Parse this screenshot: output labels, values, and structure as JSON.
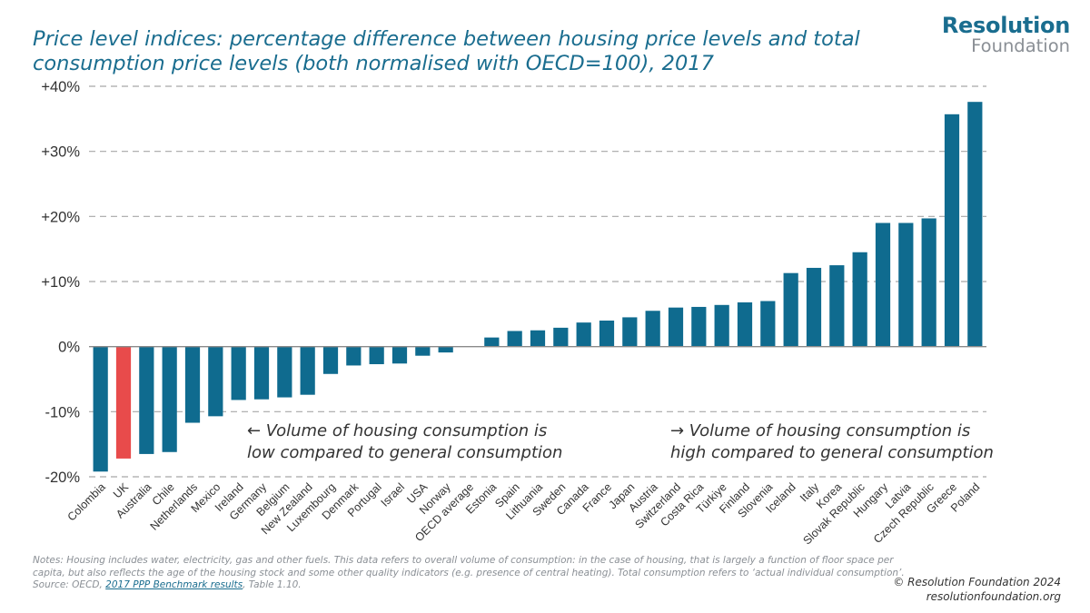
{
  "logo": {
    "line1": "Resolution",
    "line2": "Foundation"
  },
  "chart_data": {
    "type": "bar",
    "title": "Price level indices: percentage difference between housing price levels and total consumption price levels (both normalised with OECD=100), 2017",
    "xlabel": "",
    "ylabel": "",
    "ylim": [
      -20,
      40
    ],
    "yticks": [
      {
        "value": 40,
        "label": "+40%"
      },
      {
        "value": 30,
        "label": "+30%"
      },
      {
        "value": 20,
        "label": "+20%"
      },
      {
        "value": 10,
        "label": "+10%"
      },
      {
        "value": 0,
        "label": "0%"
      },
      {
        "value": -10,
        "label": "-10%"
      },
      {
        "value": -20,
        "label": "-20%"
      }
    ],
    "grid": true,
    "categories": [
      "Colombia",
      "UK",
      "Australia",
      "Chile",
      "Netherlands",
      "Mexico",
      "Ireland",
      "Germany",
      "Belgium",
      "New Zealand",
      "Luxembourg",
      "Denmark",
      "Portugal",
      "Israel",
      "USA",
      "Norway",
      "OECD average",
      "Estonia",
      "Spain",
      "Lithuania",
      "Sweden",
      "Canada",
      "France",
      "Japan",
      "Austria",
      "Switzerland",
      "Costa Rica",
      "Türkiye",
      "Finland",
      "Slovenia",
      "Iceland",
      "Italy",
      "Korea",
      "Slovak Republic",
      "Hungary",
      "Latvia",
      "Czech Republic",
      "Greece",
      "Poland"
    ],
    "values": [
      -19.2,
      -17.2,
      -16.5,
      -16.2,
      -11.7,
      -10.7,
      -8.2,
      -8.1,
      -7.8,
      -7.4,
      -4.2,
      -2.9,
      -2.7,
      -2.6,
      -1.4,
      -0.9,
      0.0,
      1.4,
      2.4,
      2.5,
      2.9,
      3.7,
      4.0,
      4.5,
      5.5,
      6.0,
      6.1,
      6.4,
      6.8,
      7.0,
      11.3,
      12.1,
      12.5,
      14.5,
      19.0,
      19.0,
      19.7,
      35.7,
      37.6
    ],
    "highlight": "UK",
    "colors": {
      "bar": "#0f6b8f",
      "highlight": "#e84b4b",
      "grid": "#a8a8a8",
      "axis": "#8a8a8a"
    },
    "annotations": [
      {
        "lines": [
          "← Volume of housing consumption is",
          "low compared to general consumption"
        ]
      },
      {
        "lines": [
          "→ Volume of housing consumption is",
          "high compared to general consumption"
        ]
      }
    ]
  },
  "notes": {
    "text": "Notes: Housing includes water, electricity, gas and other fuels. This data refers to overall volume of consumption: in the case of housing, that is largely a function of floor space per capita, but also reflects the age of the housing stock and some other quality indicators (e.g. presence of central heating). Total consumption refers to ‘actual individual consumption’.",
    "source_prefix": "Source: OECD, ",
    "source_link": "2017 PPP Benchmark results",
    "source_suffix": ", Table 1.10."
  },
  "footer": {
    "copyright": "© Resolution Foundation 2024",
    "website": "resolutionfoundation.org"
  }
}
